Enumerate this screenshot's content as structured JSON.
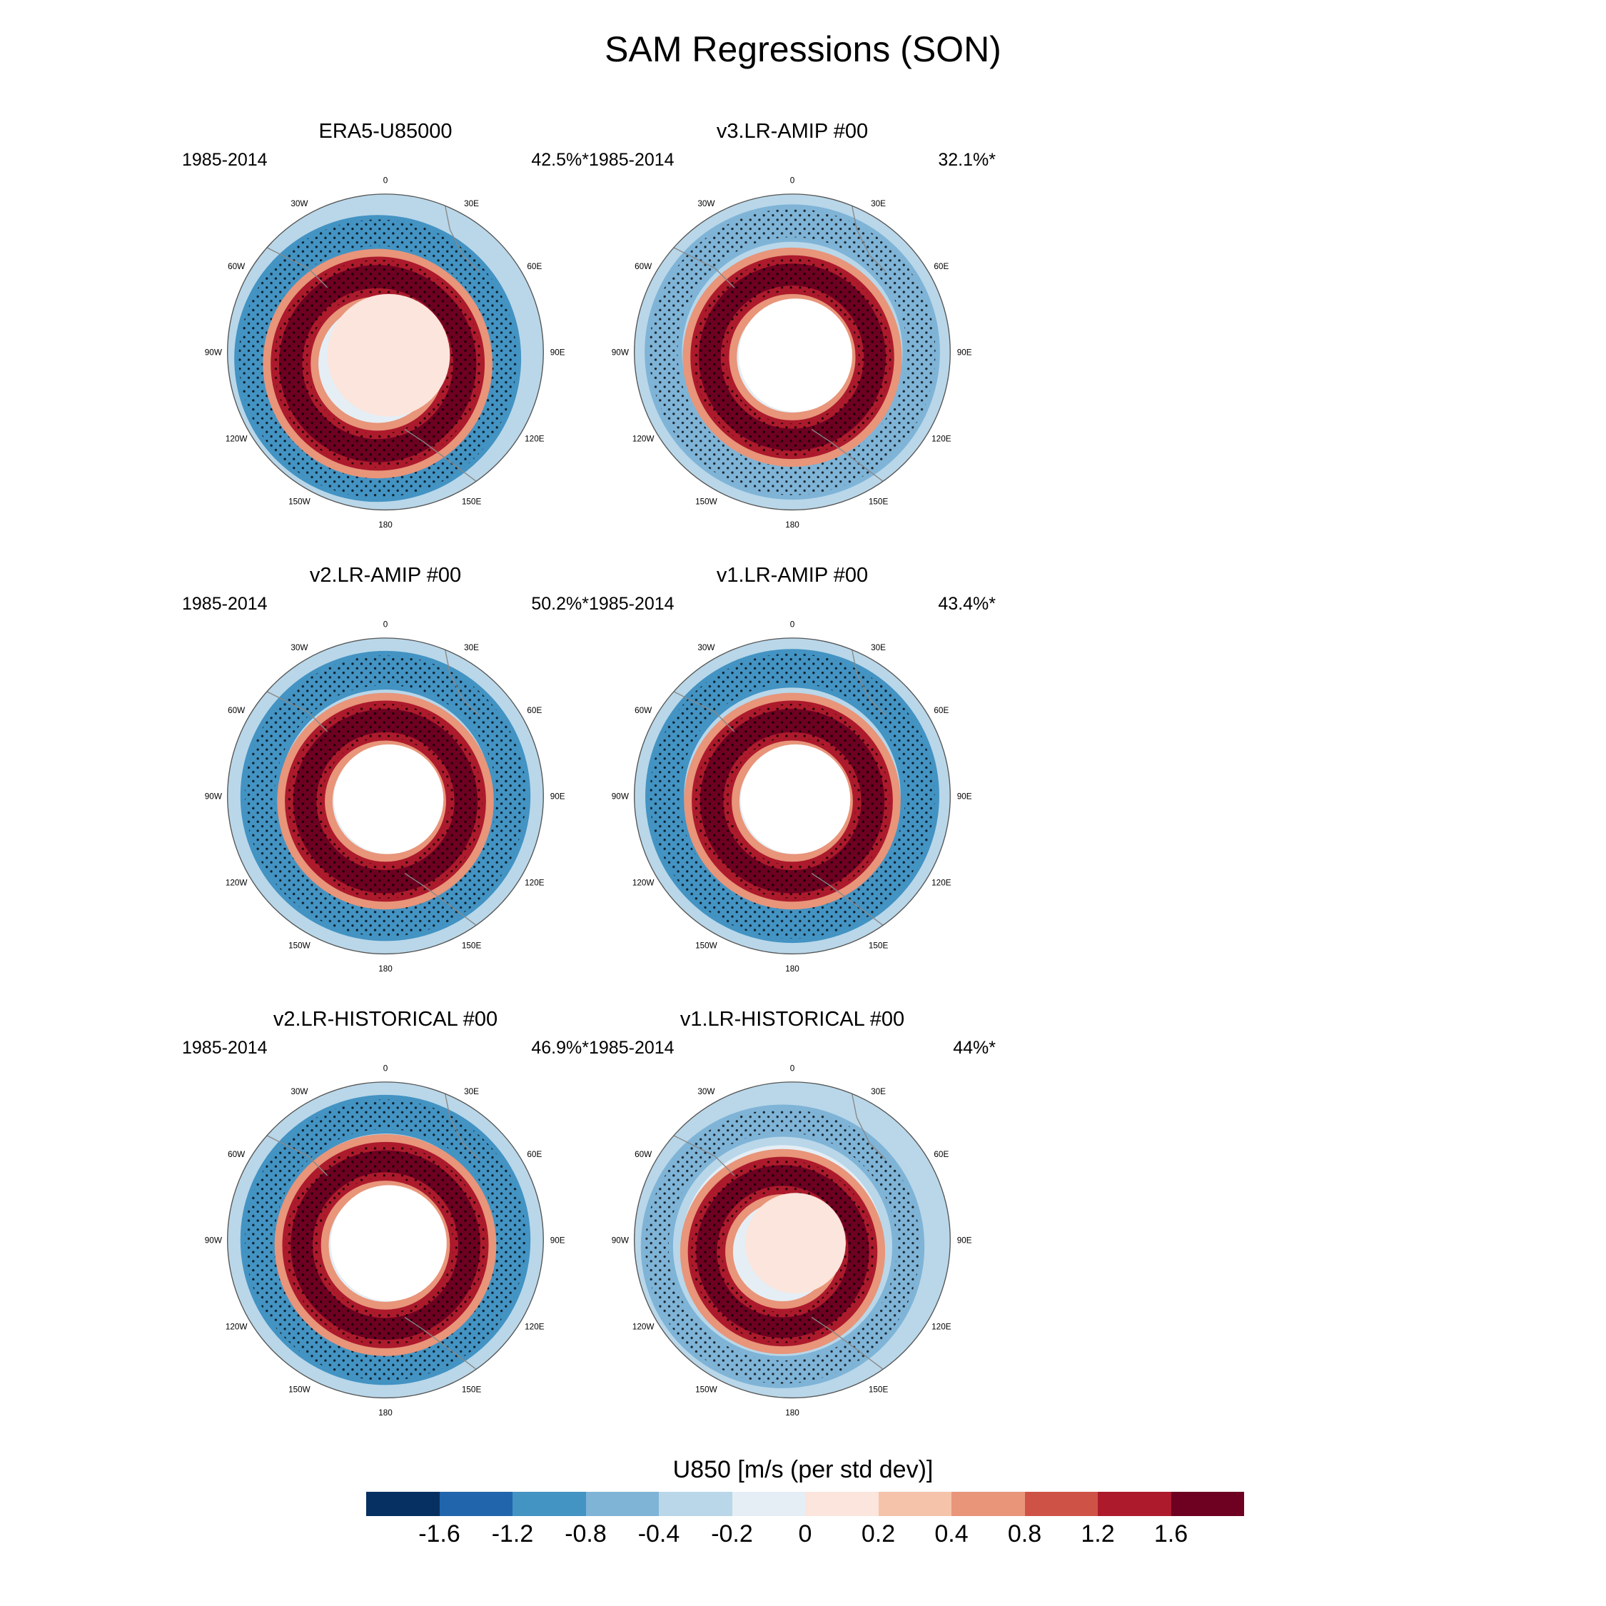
{
  "title": "SAM Regressions (SON)",
  "panels": [
    {
      "title": "ERA5-U85000",
      "years": "1985-2014",
      "pct": "42.5%*"
    },
    {
      "title": "v3.LR-AMIP  #00",
      "years": "1985-2014",
      "pct": "32.1%*"
    },
    {
      "title": "v2.LR-AMIP  #00",
      "years": "1985-2014",
      "pct": "50.2%*"
    },
    {
      "title": "v1.LR-AMIP  #00",
      "years": "1985-2014",
      "pct": "43.4%*"
    },
    {
      "title": "v2.LR-HISTORICAL  #00",
      "years": "1985-2014",
      "pct": "46.9%*"
    },
    {
      "title": "v1.LR-HISTORICAL  #00",
      "years": "1985-2014",
      "pct": "44%*"
    }
  ],
  "lon_labels": [
    "0",
    "30E",
    "60E",
    "90E",
    "120E",
    "150E",
    "180",
    "150W",
    "120W",
    "90W",
    "60W",
    "30W"
  ],
  "colorbar": {
    "label": "U850 [m/s (per std dev)]",
    "tick_labels": [
      "-1.6",
      "-1.2",
      "-0.8",
      "-0.4",
      "-0.2",
      "0",
      "0.2",
      "0.4",
      "0.8",
      "1.2",
      "1.6"
    ],
    "colors": [
      "#053061",
      "#2166ac",
      "#4393c3",
      "#7fb4d7",
      "#b9d7e9",
      "#e5eef5",
      "#fbe5dc",
      "#f5c3a9",
      "#e8957a",
      "#cf5246",
      "#ac1a2c",
      "#6e0021"
    ]
  }
}
